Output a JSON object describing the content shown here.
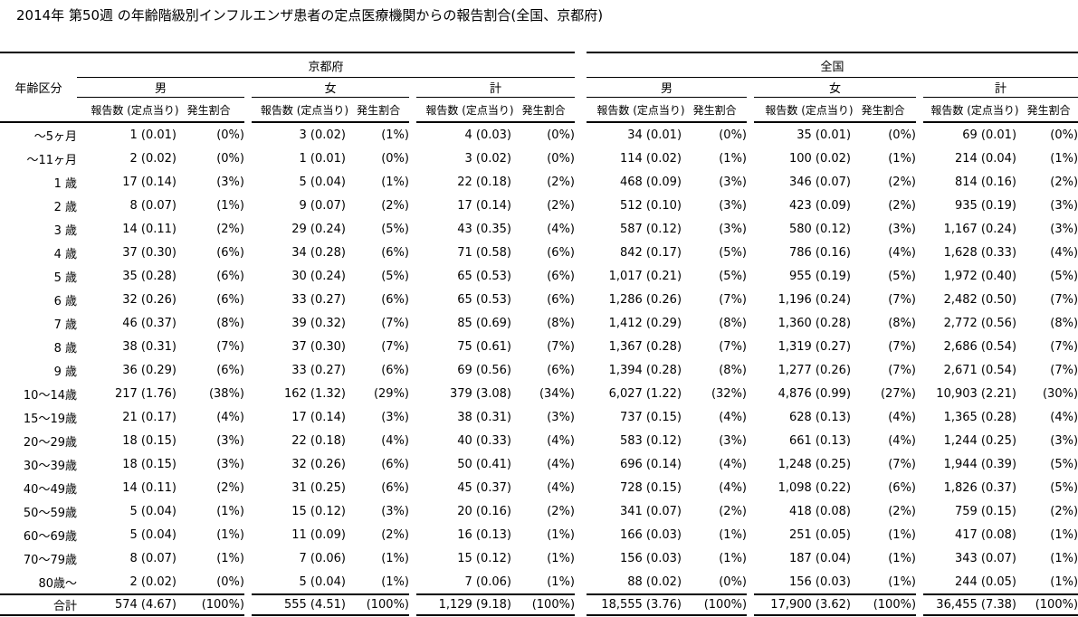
{
  "title": "2014年 第50週 の年齢階級別インフルエンザ患者の定点医療機関からの報告割合(全国、京都府)",
  "colors": {
    "text": "#000000",
    "background": "#ffffff",
    "line": "#000000"
  },
  "table": {
    "age_header": "年齢区分",
    "region_headers": [
      "京都府",
      "全国"
    ],
    "gender_headers": [
      "男",
      "女",
      "計"
    ],
    "sub_headers": [
      "報告数 (定点当り)",
      "発生割合"
    ],
    "rows": [
      {
        "age": "～5ヶ月",
        "cells": [
          "1 (0.01)",
          "(0%)",
          "3 (0.02)",
          "(1%)",
          "4 (0.03)",
          "(0%)",
          "34 (0.01)",
          "(0%)",
          "35 (0.01)",
          "(0%)",
          "69 (0.01)",
          "(0%)"
        ]
      },
      {
        "age": "～11ヶ月",
        "cells": [
          "2 (0.02)",
          "(0%)",
          "1 (0.01)",
          "(0%)",
          "3 (0.02)",
          "(0%)",
          "114 (0.02)",
          "(1%)",
          "100 (0.02)",
          "(1%)",
          "214 (0.04)",
          "(1%)"
        ]
      },
      {
        "age": "1 歳",
        "cells": [
          "17 (0.14)",
          "(3%)",
          "5 (0.04)",
          "(1%)",
          "22 (0.18)",
          "(2%)",
          "468 (0.09)",
          "(3%)",
          "346 (0.07)",
          "(2%)",
          "814 (0.16)",
          "(2%)"
        ]
      },
      {
        "age": "2 歳",
        "cells": [
          "8 (0.07)",
          "(1%)",
          "9 (0.07)",
          "(2%)",
          "17 (0.14)",
          "(2%)",
          "512 (0.10)",
          "(3%)",
          "423 (0.09)",
          "(2%)",
          "935 (0.19)",
          "(3%)"
        ]
      },
      {
        "age": "3 歳",
        "cells": [
          "14 (0.11)",
          "(2%)",
          "29 (0.24)",
          "(5%)",
          "43 (0.35)",
          "(4%)",
          "587 (0.12)",
          "(3%)",
          "580 (0.12)",
          "(3%)",
          "1,167 (0.24)",
          "(3%)"
        ]
      },
      {
        "age": "4 歳",
        "cells": [
          "37 (0.30)",
          "(6%)",
          "34 (0.28)",
          "(6%)",
          "71 (0.58)",
          "(6%)",
          "842 (0.17)",
          "(5%)",
          "786 (0.16)",
          "(4%)",
          "1,628 (0.33)",
          "(4%)"
        ]
      },
      {
        "age": "5 歳",
        "cells": [
          "35 (0.28)",
          "(6%)",
          "30 (0.24)",
          "(5%)",
          "65 (0.53)",
          "(6%)",
          "1,017 (0.21)",
          "(5%)",
          "955 (0.19)",
          "(5%)",
          "1,972 (0.40)",
          "(5%)"
        ]
      },
      {
        "age": "6 歳",
        "cells": [
          "32 (0.26)",
          "(6%)",
          "33 (0.27)",
          "(6%)",
          "65 (0.53)",
          "(6%)",
          "1,286 (0.26)",
          "(7%)",
          "1,196 (0.24)",
          "(7%)",
          "2,482 (0.50)",
          "(7%)"
        ]
      },
      {
        "age": "7 歳",
        "cells": [
          "46 (0.37)",
          "(8%)",
          "39 (0.32)",
          "(7%)",
          "85 (0.69)",
          "(8%)",
          "1,412 (0.29)",
          "(8%)",
          "1,360 (0.28)",
          "(8%)",
          "2,772 (0.56)",
          "(8%)"
        ]
      },
      {
        "age": "8 歳",
        "cells": [
          "38 (0.31)",
          "(7%)",
          "37 (0.30)",
          "(7%)",
          "75 (0.61)",
          "(7%)",
          "1,367 (0.28)",
          "(7%)",
          "1,319 (0.27)",
          "(7%)",
          "2,686 (0.54)",
          "(7%)"
        ]
      },
      {
        "age": "9 歳",
        "cells": [
          "36 (0.29)",
          "(6%)",
          "33 (0.27)",
          "(6%)",
          "69 (0.56)",
          "(6%)",
          "1,394 (0.28)",
          "(8%)",
          "1,277 (0.26)",
          "(7%)",
          "2,671 (0.54)",
          "(7%)"
        ]
      },
      {
        "age": "10～14歳",
        "cells": [
          "217 (1.76)",
          "(38%)",
          "162 (1.32)",
          "(29%)",
          "379 (3.08)",
          "(34%)",
          "6,027 (1.22)",
          "(32%)",
          "4,876 (0.99)",
          "(27%)",
          "10,903 (2.21)",
          "(30%)"
        ]
      },
      {
        "age": "15～19歳",
        "cells": [
          "21 (0.17)",
          "(4%)",
          "17 (0.14)",
          "(3%)",
          "38 (0.31)",
          "(3%)",
          "737 (0.15)",
          "(4%)",
          "628 (0.13)",
          "(4%)",
          "1,365 (0.28)",
          "(4%)"
        ]
      },
      {
        "age": "20～29歳",
        "cells": [
          "18 (0.15)",
          "(3%)",
          "22 (0.18)",
          "(4%)",
          "40 (0.33)",
          "(4%)",
          "583 (0.12)",
          "(3%)",
          "661 (0.13)",
          "(4%)",
          "1,244 (0.25)",
          "(3%)"
        ]
      },
      {
        "age": "30～39歳",
        "cells": [
          "18 (0.15)",
          "(3%)",
          "32 (0.26)",
          "(6%)",
          "50 (0.41)",
          "(4%)",
          "696 (0.14)",
          "(4%)",
          "1,248 (0.25)",
          "(7%)",
          "1,944 (0.39)",
          "(5%)"
        ]
      },
      {
        "age": "40～49歳",
        "cells": [
          "14 (0.11)",
          "(2%)",
          "31 (0.25)",
          "(6%)",
          "45 (0.37)",
          "(4%)",
          "728 (0.15)",
          "(4%)",
          "1,098 (0.22)",
          "(6%)",
          "1,826 (0.37)",
          "(5%)"
        ]
      },
      {
        "age": "50～59歳",
        "cells": [
          "5 (0.04)",
          "(1%)",
          "15 (0.12)",
          "(3%)",
          "20 (0.16)",
          "(2%)",
          "341 (0.07)",
          "(2%)",
          "418 (0.08)",
          "(2%)",
          "759 (0.15)",
          "(2%)"
        ]
      },
      {
        "age": "60～69歳",
        "cells": [
          "5 (0.04)",
          "(1%)",
          "11 (0.09)",
          "(2%)",
          "16 (0.13)",
          "(1%)",
          "166 (0.03)",
          "(1%)",
          "251 (0.05)",
          "(1%)",
          "417 (0.08)",
          "(1%)"
        ]
      },
      {
        "age": "70～79歳",
        "cells": [
          "8 (0.07)",
          "(1%)",
          "7 (0.06)",
          "(1%)",
          "15 (0.12)",
          "(1%)",
          "156 (0.03)",
          "(1%)",
          "187 (0.04)",
          "(1%)",
          "343 (0.07)",
          "(1%)"
        ]
      },
      {
        "age": "80歳～",
        "cells": [
          "2 (0.02)",
          "(0%)",
          "5 (0.04)",
          "(1%)",
          "7 (0.06)",
          "(1%)",
          "88 (0.02)",
          "(0%)",
          "156 (0.03)",
          "(1%)",
          "244 (0.05)",
          "(1%)"
        ]
      }
    ],
    "total_row": {
      "age": "合計",
      "cells": [
        "574 (4.67)",
        "(100%)",
        "555 (4.51)",
        "(100%)",
        "1,129 (9.18)",
        "(100%)",
        "18,555 (3.76)",
        "(100%)",
        "17,900 (3.62)",
        "(100%)",
        "36,455 (7.38)",
        "(100%)"
      ]
    }
  }
}
